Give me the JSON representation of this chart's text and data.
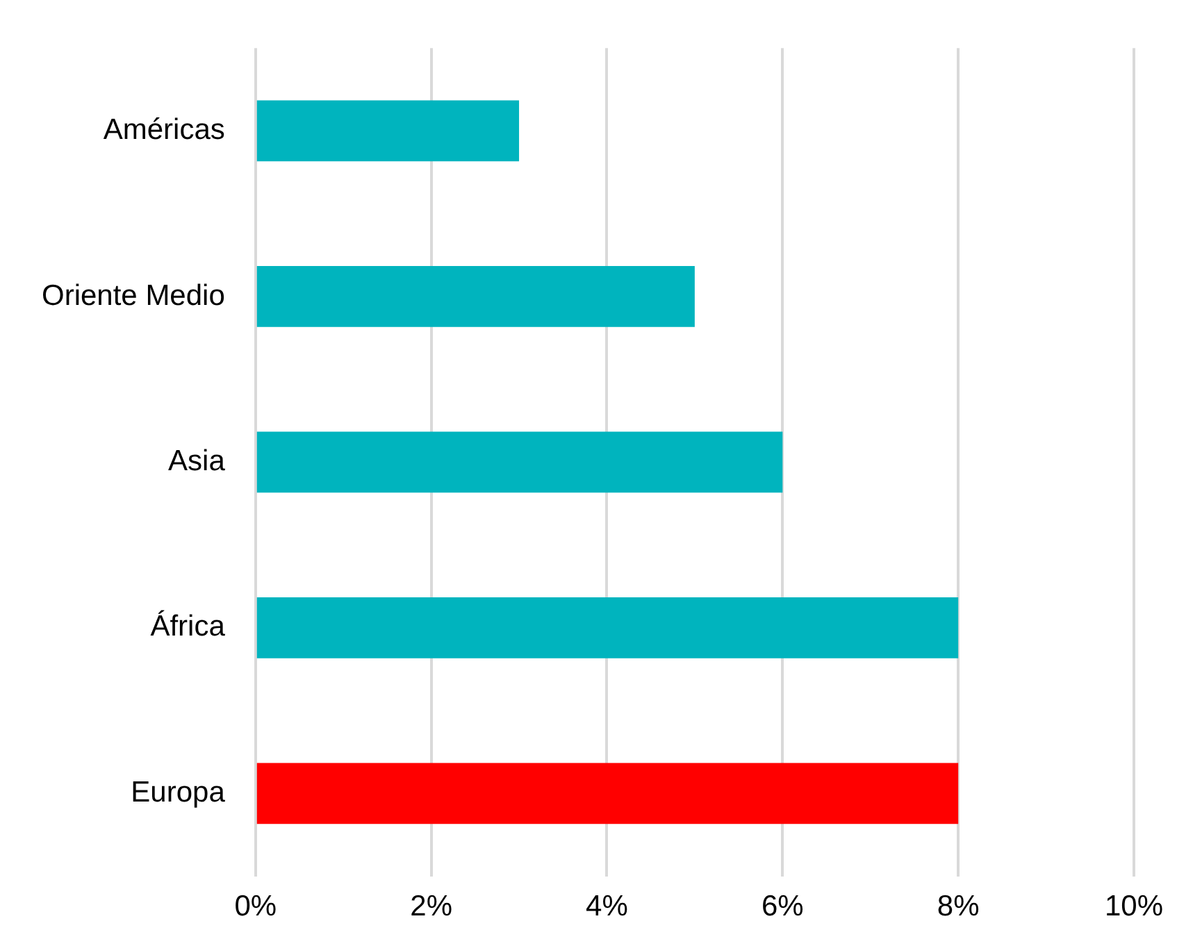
{
  "chart_data": {
    "type": "bar",
    "orientation": "horizontal",
    "categories": [
      "Américas",
      "Oriente Medio",
      "Asia",
      "África",
      "Europa"
    ],
    "values": [
      3,
      5,
      6,
      8,
      8
    ],
    "colors": [
      "#00b4be",
      "#00b4be",
      "#00b4be",
      "#00b4be",
      "#ff0000"
    ],
    "xlim": [
      0,
      10
    ],
    "xticks": [
      {
        "value": 0,
        "label": "0%"
      },
      {
        "value": 2,
        "label": "2%"
      },
      {
        "value": 4,
        "label": "4%"
      },
      {
        "value": 6,
        "label": "6%"
      },
      {
        "value": 8,
        "label": "8%"
      },
      {
        "value": 10,
        "label": "10%"
      }
    ],
    "grid": "x",
    "legend": false
  }
}
